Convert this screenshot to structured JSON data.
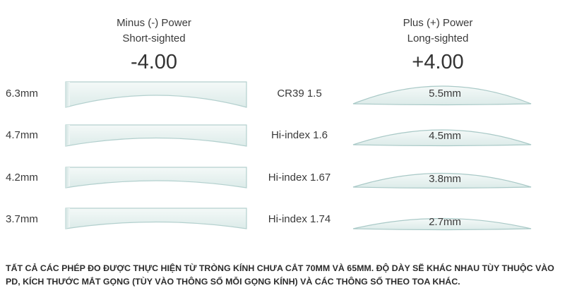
{
  "minus_header": {
    "title": "Minus (-) Power",
    "subtitle": "Short-sighted",
    "power": "-4.00"
  },
  "plus_header": {
    "title": "Plus (+) Power",
    "subtitle": "Long-sighted",
    "power": "+4.00"
  },
  "rows": [
    {
      "minus_thickness": "6.3mm",
      "material": "CR39 1.5",
      "plus_thickness": "5.5mm"
    },
    {
      "minus_thickness": "4.7mm",
      "material": "Hi-index 1.6",
      "plus_thickness": "4.5mm"
    },
    {
      "minus_thickness": "4.2mm",
      "material": "Hi-index 1.67",
      "plus_thickness": "3.8mm"
    },
    {
      "minus_thickness": "3.7mm",
      "material": "Hi-index 1.74",
      "plus_thickness": "2.7mm"
    }
  ],
  "footnote": "TẤT CẢ CÁC PHÉP ĐO ĐƯỢC THỰC HIỆN TỪ TRÒNG KÍNH CHƯA CẮT 70MM VÀ 65MM. ĐỘ DÀY SẼ KHÁC NHAU TÙY THUỘC VÀO PD, KÍCH THƯỚC MẮT GỌNG (TÙY VÀO THÔNG SỐ MỖI GỌNG KÍNH) VÀ CÁC THÔNG SỐ THEO TOA KHÁC.",
  "colors": {
    "lens_fill": "#e9f3f2",
    "lens_edge": "#a9c9c7",
    "text": "#3a3a3a"
  }
}
